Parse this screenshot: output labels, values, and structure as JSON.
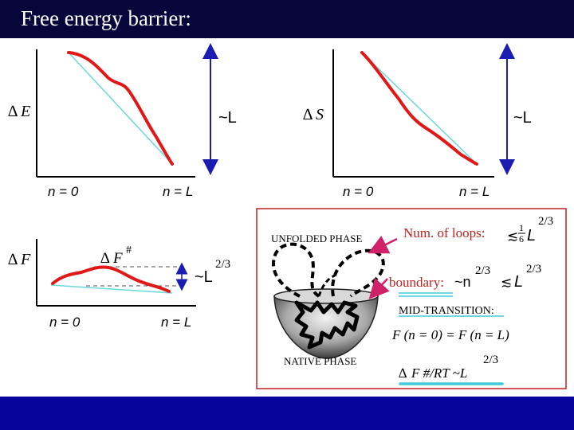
{
  "title": "Free energy barrier:",
  "panel_energy": {
    "y_label": "E",
    "scale_label": "~L",
    "x_start": "n = 0",
    "x_end": "n = L"
  },
  "panel_entropy": {
    "y_label": "S",
    "scale_label": "~L",
    "x_start": "n = 0",
    "x_end": "n = L"
  },
  "panel_free_energy": {
    "y_label": "F",
    "peak_label": "F",
    "peak_sup": "#",
    "scale_base": "~L",
    "scale_sup": "2/3",
    "x_start": "n = 0",
    "x_end": "n = L"
  },
  "box": {
    "unfolded_label": "UNFOLDED PHASE",
    "native_label": "NATIVE PHASE",
    "loops_label": "Num. of loops:",
    "loops_rel": "≲",
    "loops_frac_num": "1",
    "loops_frac_den": "6",
    "loops_L": "L",
    "loops_sup": "2/3",
    "boundary_label": "boundary:",
    "boundary_expr": "~n",
    "boundary_sup": "2/3",
    "boundary_rel": "≲",
    "boundary_L": "L",
    "boundary_L_sup": "2/3",
    "midtransition_label": "MID-TRANSITION:",
    "equality_expr": "F (n = 0) = F (n = L)",
    "barrier_expr": "F #/RT ~L",
    "barrier_sup": "2/3"
  },
  "colors": {
    "title_bg": "#06063a",
    "footer_bg": "#04049a",
    "curve": "#e01818",
    "reference_line": "#6ad8d8",
    "arrow": "#1c1cb0",
    "box_border": "#c02020",
    "pointer_arrow": "#d0206a",
    "underline": "#40c8d8"
  }
}
